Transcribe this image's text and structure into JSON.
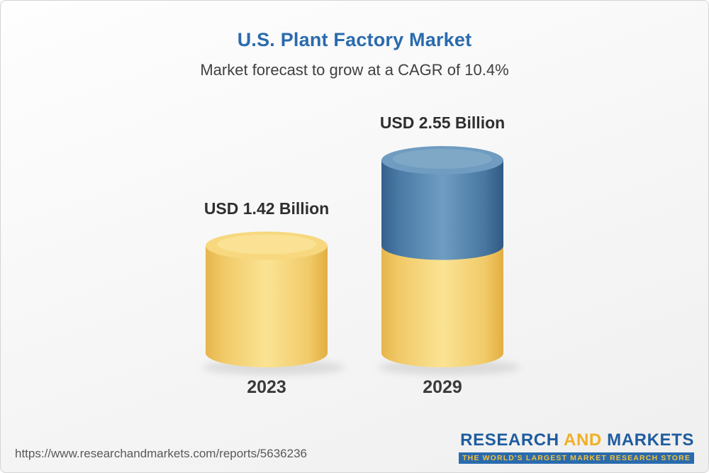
{
  "chart_data": {
    "type": "bar",
    "variant": "3d-cylinder",
    "title": "U.S. Plant Factory Market",
    "subtitle": "Market forecast to grow at a CAGR of 10.4%",
    "cagr": "10.4%",
    "unit": "USD Billion",
    "categories": [
      "2023",
      "2029"
    ],
    "values": [
      1.42,
      2.55
    ],
    "value_labels": [
      "USD 1.42 Billion",
      "USD 2.55 Billion"
    ],
    "ylim": [
      0,
      2.55
    ],
    "grid": false,
    "legend": false,
    "colors": {
      "title": "#2a6bad",
      "bar_yellow": "#f5cf6b",
      "bar_blue": "#3f6f9d",
      "logo_blue": "#1f5c9e",
      "logo_gold": "#f0af26"
    },
    "notes": "2029 bar is stacked: yellow base equals the 2023 value, blue top is the forecast growth."
  },
  "footer": {
    "url": "https://www.researchandmarkets.com/reports/5636236",
    "logo": {
      "word1": "RESEARCH",
      "word2": "AND",
      "word3": "MARKETS",
      "tagline": "THE WORLD'S LARGEST MARKET RESEARCH STORE"
    }
  }
}
